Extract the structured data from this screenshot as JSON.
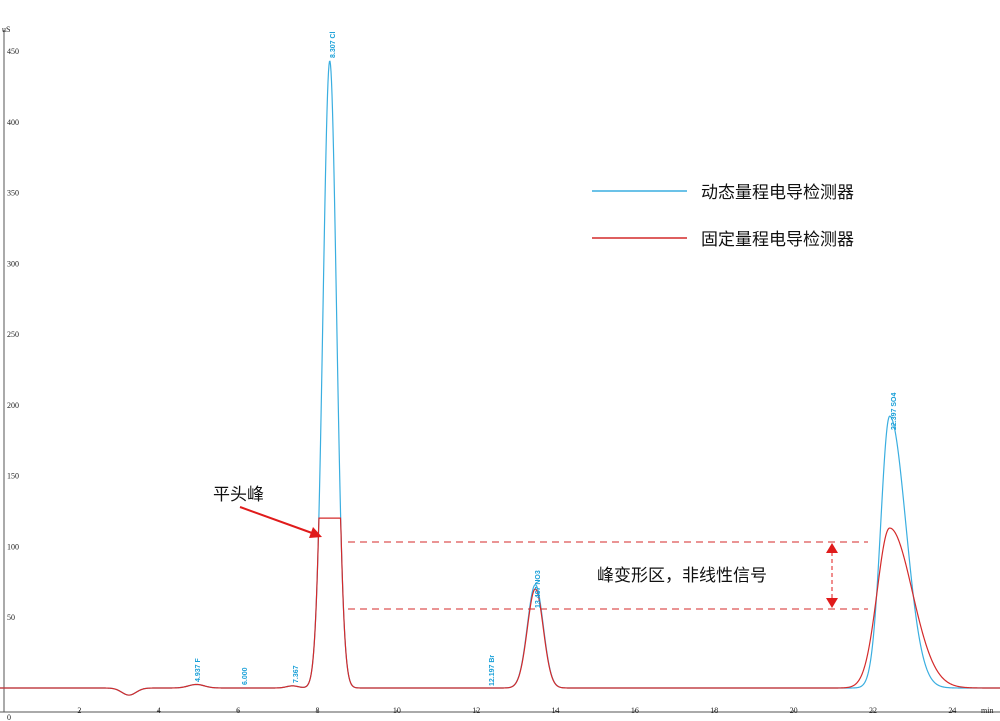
{
  "chart_data": {
    "type": "line",
    "y_unit": "uS",
    "x_unit": "min",
    "xlim": [
      0,
      25.2
    ],
    "ylim": [
      0,
      450
    ],
    "x_ticks": [
      "2",
      "4",
      "6",
      "8",
      "10",
      "12",
      "14",
      "16",
      "18",
      "20",
      "22",
      "24"
    ],
    "y_ticks": [
      "0",
      "50",
      "100",
      "150",
      "200",
      "250",
      "300",
      "350",
      "400",
      "450"
    ],
    "baseline": 0,
    "series": [
      {
        "name": "动态量程电导检测器",
        "color": "#3aaee0",
        "peaks": [
          {
            "t": 3.25,
            "h": -5,
            "w": 0.18
          },
          {
            "t": 4.95,
            "h": 2.5,
            "w": 0.2
          },
          {
            "t": 7.37,
            "h": 1.5,
            "w": 0.15
          },
          {
            "t": 8.31,
            "h": 443,
            "w": 0.17
          },
          {
            "t": 13.49,
            "h": 73,
            "w": 0.2
          },
          {
            "t": 22.42,
            "h": 192,
            "w": 0.3
          }
        ]
      },
      {
        "name": "固定量程电导检测器",
        "color": "#d42a2a",
        "clip_level": 120,
        "peaks": [
          {
            "t": 3.25,
            "h": -5,
            "w": 0.18
          },
          {
            "t": 4.95,
            "h": 2.5,
            "w": 0.2
          },
          {
            "t": 7.37,
            "h": 1.5,
            "w": 0.15
          },
          {
            "t": 8.31,
            "h": 443,
            "w": 0.17
          },
          {
            "t": 13.49,
            "h": 70,
            "w": 0.2
          },
          {
            "t": 22.42,
            "h": 113,
            "w": 0.42
          }
        ]
      }
    ],
    "peak_labels": [
      "4.937 F",
      "6.000",
      "7.367",
      "8.307 Cl",
      "12.197 Br",
      "13.467 NO3",
      "22.397 SO4"
    ],
    "annotations": {
      "flat_top": "平头峰",
      "distortion": "峰变形区，非线性信号"
    }
  },
  "legend": {
    "items": [
      "动态量程电导检测器",
      "固定量程电导检测器"
    ]
  }
}
